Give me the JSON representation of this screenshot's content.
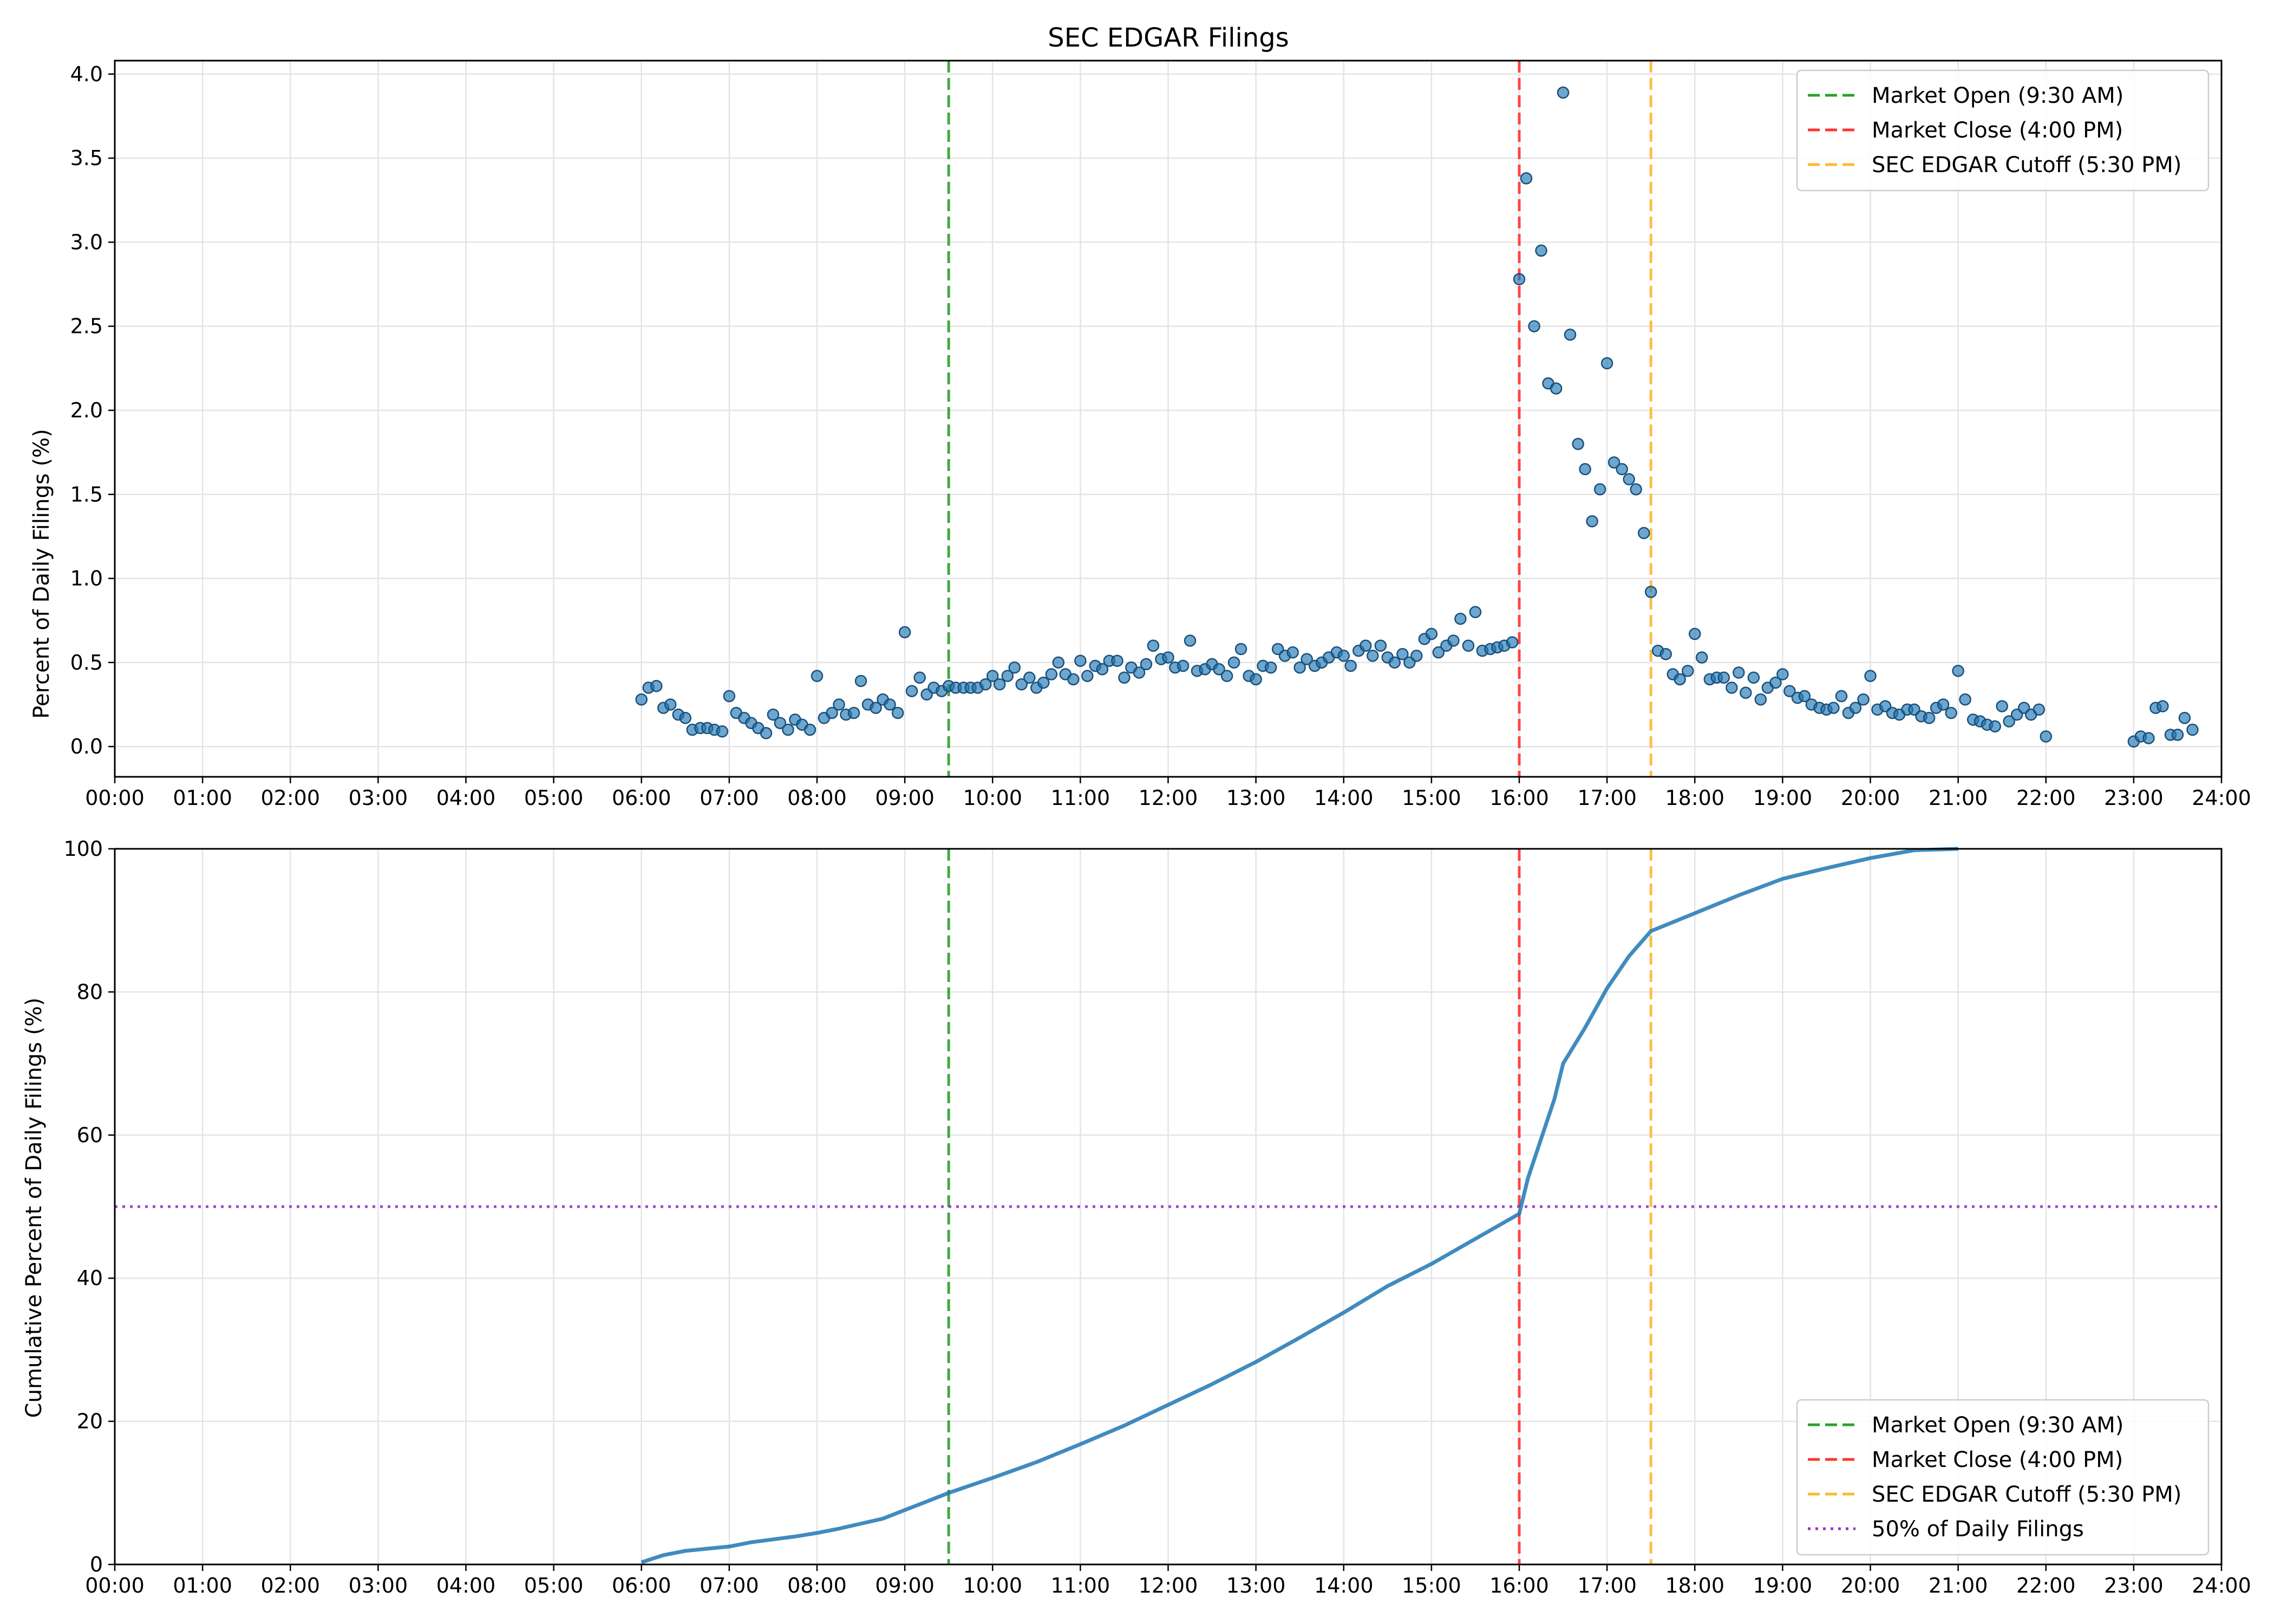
{
  "chart_data": [
    {
      "type": "scatter",
      "title": "SEC EDGAR Filings",
      "xlabel": "",
      "ylabel": "Percent of Daily Filings (%)",
      "xlim": [
        0,
        24
      ],
      "ylim": [
        -0.18,
        4.08
      ],
      "x_tick_labels": [
        "00:00",
        "01:00",
        "02:00",
        "03:00",
        "04:00",
        "05:00",
        "06:00",
        "07:00",
        "08:00",
        "09:00",
        "10:00",
        "11:00",
        "12:00",
        "13:00",
        "14:00",
        "15:00",
        "16:00",
        "17:00",
        "18:00",
        "19:00",
        "20:00",
        "21:00",
        "22:00",
        "23:00",
        "24:00"
      ],
      "y_ticks": [
        0.0,
        0.5,
        1.0,
        1.5,
        2.0,
        2.5,
        3.0,
        3.5,
        4.0
      ],
      "y_tick_labels": [
        "0.0",
        "0.5",
        "1.0",
        "1.5",
        "2.0",
        "2.5",
        "3.0",
        "3.5",
        "4.0"
      ],
      "grid": true,
      "legend_position": "top-right",
      "point_color": "#1f77b4",
      "vlines": [
        {
          "x": 9.5,
          "label": "Market Open (9:30 AM)",
          "color": "#2ca02c",
          "style": "dashed"
        },
        {
          "x": 16.0,
          "label": "Market Close (4:00 PM)",
          "color": "#ff3333",
          "style": "dashed"
        },
        {
          "x": 17.5,
          "label": "SEC EDGAR Cutoff (5:30 PM)",
          "color": "#ffb733",
          "style": "dashed"
        }
      ],
      "points": [
        [
          6.0,
          0.28
        ],
        [
          6.08,
          0.35
        ],
        [
          6.17,
          0.36
        ],
        [
          6.25,
          0.23
        ],
        [
          6.33,
          0.25
        ],
        [
          6.42,
          0.19
        ],
        [
          6.5,
          0.17
        ],
        [
          6.58,
          0.1
        ],
        [
          6.67,
          0.11
        ],
        [
          6.75,
          0.11
        ],
        [
          6.83,
          0.1
        ],
        [
          6.92,
          0.09
        ],
        [
          7.0,
          0.3
        ],
        [
          7.08,
          0.2
        ],
        [
          7.17,
          0.17
        ],
        [
          7.25,
          0.14
        ],
        [
          7.33,
          0.11
        ],
        [
          7.42,
          0.08
        ],
        [
          7.5,
          0.19
        ],
        [
          7.58,
          0.14
        ],
        [
          7.67,
          0.1
        ],
        [
          7.75,
          0.16
        ],
        [
          7.83,
          0.13
        ],
        [
          7.92,
          0.1
        ],
        [
          8.0,
          0.42
        ],
        [
          8.08,
          0.17
        ],
        [
          8.17,
          0.2
        ],
        [
          8.25,
          0.25
        ],
        [
          8.33,
          0.19
        ],
        [
          8.42,
          0.2
        ],
        [
          8.5,
          0.39
        ],
        [
          8.58,
          0.25
        ],
        [
          8.67,
          0.23
        ],
        [
          8.75,
          0.28
        ],
        [
          8.83,
          0.25
        ],
        [
          8.92,
          0.2
        ],
        [
          9.0,
          0.68
        ],
        [
          9.08,
          0.33
        ],
        [
          9.17,
          0.41
        ],
        [
          9.25,
          0.31
        ],
        [
          9.33,
          0.35
        ],
        [
          9.42,
          0.33
        ],
        [
          9.5,
          0.36
        ],
        [
          9.58,
          0.35
        ],
        [
          9.67,
          0.35
        ],
        [
          9.75,
          0.35
        ],
        [
          9.83,
          0.35
        ],
        [
          9.92,
          0.37
        ],
        [
          10.0,
          0.42
        ],
        [
          10.08,
          0.37
        ],
        [
          10.17,
          0.42
        ],
        [
          10.25,
          0.47
        ],
        [
          10.33,
          0.37
        ],
        [
          10.42,
          0.41
        ],
        [
          10.5,
          0.35
        ],
        [
          10.58,
          0.38
        ],
        [
          10.67,
          0.43
        ],
        [
          10.75,
          0.5
        ],
        [
          10.83,
          0.43
        ],
        [
          10.92,
          0.4
        ],
        [
          11.0,
          0.51
        ],
        [
          11.08,
          0.42
        ],
        [
          11.17,
          0.48
        ],
        [
          11.25,
          0.46
        ],
        [
          11.33,
          0.51
        ],
        [
          11.42,
          0.51
        ],
        [
          11.5,
          0.41
        ],
        [
          11.58,
          0.47
        ],
        [
          11.67,
          0.44
        ],
        [
          11.75,
          0.49
        ],
        [
          11.83,
          0.6
        ],
        [
          11.92,
          0.52
        ],
        [
          12.0,
          0.53
        ],
        [
          12.08,
          0.47
        ],
        [
          12.17,
          0.48
        ],
        [
          12.25,
          0.63
        ],
        [
          12.33,
          0.45
        ],
        [
          12.42,
          0.46
        ],
        [
          12.5,
          0.49
        ],
        [
          12.58,
          0.46
        ],
        [
          12.67,
          0.42
        ],
        [
          12.75,
          0.5
        ],
        [
          12.83,
          0.58
        ],
        [
          12.92,
          0.42
        ],
        [
          13.0,
          0.4
        ],
        [
          13.08,
          0.48
        ],
        [
          13.17,
          0.47
        ],
        [
          13.25,
          0.58
        ],
        [
          13.33,
          0.54
        ],
        [
          13.42,
          0.56
        ],
        [
          13.5,
          0.47
        ],
        [
          13.58,
          0.52
        ],
        [
          13.67,
          0.48
        ],
        [
          13.75,
          0.5
        ],
        [
          13.83,
          0.53
        ],
        [
          13.92,
          0.56
        ],
        [
          14.0,
          0.54
        ],
        [
          14.08,
          0.48
        ],
        [
          14.17,
          0.57
        ],
        [
          14.25,
          0.6
        ],
        [
          14.33,
          0.54
        ],
        [
          14.42,
          0.6
        ],
        [
          14.5,
          0.53
        ],
        [
          14.58,
          0.5
        ],
        [
          14.67,
          0.55
        ],
        [
          14.75,
          0.5
        ],
        [
          14.83,
          0.54
        ],
        [
          14.92,
          0.64
        ],
        [
          15.0,
          0.67
        ],
        [
          15.08,
          0.56
        ],
        [
          15.17,
          0.6
        ],
        [
          15.25,
          0.63
        ],
        [
          15.33,
          0.76
        ],
        [
          15.42,
          0.6
        ],
        [
          15.5,
          0.8
        ],
        [
          15.58,
          0.57
        ],
        [
          15.67,
          0.58
        ],
        [
          15.75,
          0.59
        ],
        [
          15.83,
          0.6
        ],
        [
          15.92,
          0.62
        ],
        [
          16.0,
          2.78
        ],
        [
          16.08,
          3.38
        ],
        [
          16.17,
          2.5
        ],
        [
          16.25,
          2.95
        ],
        [
          16.33,
          2.16
        ],
        [
          16.42,
          2.13
        ],
        [
          16.5,
          3.89
        ],
        [
          16.58,
          2.45
        ],
        [
          16.67,
          1.8
        ],
        [
          16.75,
          1.65
        ],
        [
          16.83,
          1.34
        ],
        [
          16.92,
          1.53
        ],
        [
          17.0,
          2.28
        ],
        [
          17.08,
          1.69
        ],
        [
          17.17,
          1.65
        ],
        [
          17.25,
          1.59
        ],
        [
          17.33,
          1.53
        ],
        [
          17.42,
          1.27
        ],
        [
          17.5,
          0.92
        ],
        [
          17.58,
          0.57
        ],
        [
          17.67,
          0.55
        ],
        [
          17.75,
          0.43
        ],
        [
          17.83,
          0.4
        ],
        [
          17.92,
          0.45
        ],
        [
          18.0,
          0.67
        ],
        [
          18.08,
          0.53
        ],
        [
          18.17,
          0.4
        ],
        [
          18.25,
          0.41
        ],
        [
          18.33,
          0.41
        ],
        [
          18.42,
          0.35
        ],
        [
          18.5,
          0.44
        ],
        [
          18.58,
          0.32
        ],
        [
          18.67,
          0.41
        ],
        [
          18.75,
          0.28
        ],
        [
          18.83,
          0.35
        ],
        [
          18.92,
          0.38
        ],
        [
          19.0,
          0.43
        ],
        [
          19.08,
          0.33
        ],
        [
          19.17,
          0.29
        ],
        [
          19.25,
          0.3
        ],
        [
          19.33,
          0.25
        ],
        [
          19.42,
          0.23
        ],
        [
          19.5,
          0.22
        ],
        [
          19.58,
          0.23
        ],
        [
          19.67,
          0.3
        ],
        [
          19.75,
          0.2
        ],
        [
          19.83,
          0.23
        ],
        [
          19.92,
          0.28
        ],
        [
          20.0,
          0.42
        ],
        [
          20.08,
          0.22
        ],
        [
          20.17,
          0.24
        ],
        [
          20.25,
          0.2
        ],
        [
          20.33,
          0.19
        ],
        [
          20.42,
          0.22
        ],
        [
          20.5,
          0.22
        ],
        [
          20.58,
          0.18
        ],
        [
          20.67,
          0.17
        ],
        [
          20.75,
          0.23
        ],
        [
          20.83,
          0.25
        ],
        [
          20.92,
          0.2
        ],
        [
          21.0,
          0.45
        ],
        [
          21.08,
          0.28
        ],
        [
          21.17,
          0.16
        ],
        [
          21.25,
          0.15
        ],
        [
          21.33,
          0.13
        ],
        [
          21.42,
          0.12
        ],
        [
          21.5,
          0.24
        ],
        [
          21.58,
          0.15
        ],
        [
          21.67,
          0.19
        ],
        [
          21.75,
          0.23
        ],
        [
          21.83,
          0.19
        ],
        [
          21.92,
          0.22
        ],
        [
          22.0,
          0.06
        ],
        [
          23.0,
          0.03
        ],
        [
          23.08,
          0.06
        ],
        [
          23.17,
          0.05
        ],
        [
          23.25,
          0.23
        ],
        [
          23.33,
          0.24
        ],
        [
          23.42,
          0.07
        ],
        [
          23.5,
          0.07
        ],
        [
          23.58,
          0.17
        ],
        [
          23.67,
          0.1
        ]
      ]
    },
    {
      "type": "line",
      "title": "",
      "xlabel": "",
      "ylabel": "Cumulative Percent of Daily Filings (%)",
      "xlim": [
        0,
        24
      ],
      "ylim": [
        0,
        100
      ],
      "x_tick_labels": [
        "00:00",
        "01:00",
        "02:00",
        "03:00",
        "04:00",
        "05:00",
        "06:00",
        "07:00",
        "08:00",
        "09:00",
        "10:00",
        "11:00",
        "12:00",
        "13:00",
        "14:00",
        "15:00",
        "16:00",
        "17:00",
        "18:00",
        "19:00",
        "20:00",
        "21:00",
        "22:00",
        "23:00",
        "24:00"
      ],
      "y_ticks": [
        0,
        20,
        40,
        60,
        80,
        100
      ],
      "y_tick_labels": [
        "0",
        "20",
        "40",
        "60",
        "80",
        "100"
      ],
      "grid": true,
      "legend_position": "bottom-right",
      "line_color": "#1f77b4",
      "vlines": [
        {
          "x": 9.5,
          "label": "Market Open (9:30 AM)",
          "color": "#2ca02c",
          "style": "dashed"
        },
        {
          "x": 16.0,
          "label": "Market Close (4:00 PM)",
          "color": "#ff3333",
          "style": "dashed"
        },
        {
          "x": 17.5,
          "label": "SEC EDGAR Cutoff (5:30 PM)",
          "color": "#ffb733",
          "style": "dashed"
        }
      ],
      "hlines": [
        {
          "y": 50,
          "label": "50% of Daily Filings",
          "color": "#9b30c9",
          "style": "dotted"
        }
      ],
      "points": [
        [
          6.0,
          0.3
        ],
        [
          6.25,
          1.3
        ],
        [
          6.5,
          1.9
        ],
        [
          6.75,
          2.2
        ],
        [
          7.0,
          2.5
        ],
        [
          7.25,
          3.1
        ],
        [
          7.5,
          3.5
        ],
        [
          7.75,
          3.9
        ],
        [
          8.0,
          4.4
        ],
        [
          8.25,
          5.0
        ],
        [
          8.5,
          5.7
        ],
        [
          8.75,
          6.4
        ],
        [
          9.0,
          7.6
        ],
        [
          9.25,
          8.8
        ],
        [
          9.5,
          10.0
        ],
        [
          10.0,
          12.1
        ],
        [
          10.5,
          14.3
        ],
        [
          11.0,
          16.8
        ],
        [
          11.5,
          19.4
        ],
        [
          12.0,
          22.3
        ],
        [
          12.5,
          25.2
        ],
        [
          13.0,
          28.3
        ],
        [
          13.5,
          31.7
        ],
        [
          14.0,
          35.2
        ],
        [
          14.5,
          38.9
        ],
        [
          15.0,
          42.0
        ],
        [
          15.5,
          45.5
        ],
        [
          16.0,
          49.0
        ],
        [
          16.1,
          54.0
        ],
        [
          16.25,
          59.5
        ],
        [
          16.4,
          65.0
        ],
        [
          16.5,
          70.0
        ],
        [
          16.75,
          75.0
        ],
        [
          17.0,
          80.5
        ],
        [
          17.25,
          85.0
        ],
        [
          17.5,
          88.5
        ],
        [
          18.0,
          91.0
        ],
        [
          18.5,
          93.5
        ],
        [
          19.0,
          95.8
        ],
        [
          19.5,
          97.3
        ],
        [
          20.0,
          98.7
        ],
        [
          20.5,
          99.8
        ],
        [
          21.0,
          100.0
        ]
      ]
    }
  ]
}
